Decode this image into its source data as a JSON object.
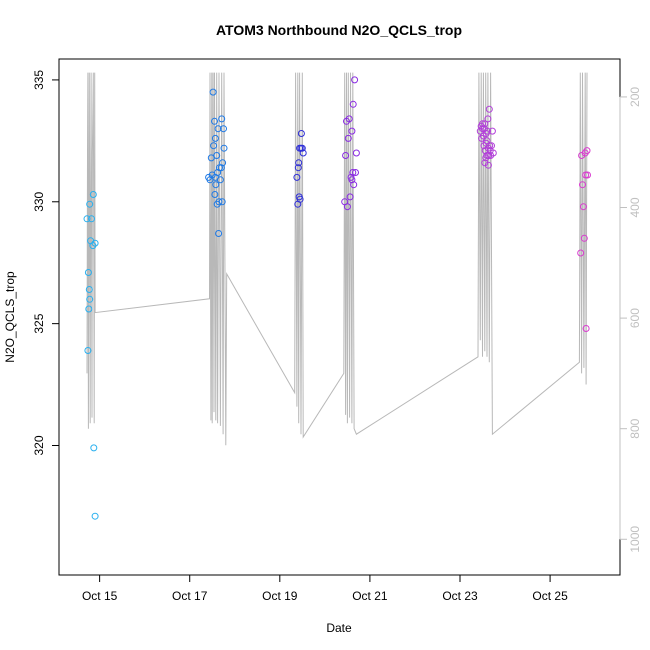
{
  "chart_data": {
    "type": "scatter",
    "title": "ATOM3 Northbound N2O_QCLS_trop",
    "xlabel": "Date",
    "ylabel": "N2O_QCLS_trop",
    "x_ticks": [
      "Oct 15",
      "Oct 17",
      "Oct 19",
      "Oct 21",
      "Oct 23",
      "Oct 25"
    ],
    "x_tick_values": [
      15,
      17,
      19,
      21,
      23,
      25
    ],
    "xlim": [
      14.4,
      26.25
    ],
    "y_ticks": [
      "320",
      "325",
      "330",
      "335"
    ],
    "y_tick_values": [
      320,
      325,
      330,
      335
    ],
    "ylim": [
      315.2,
      335.3
    ],
    "y2_ticks": [
      "200",
      "400",
      "600",
      "800",
      "1000"
    ],
    "y2_tick_values": [
      200,
      400,
      600,
      800,
      1000
    ],
    "y2lim": [
      1042,
      156
    ],
    "y2_reversed": true,
    "grid": false,
    "legend": "none",
    "point_colors": [
      "#29b0ef",
      "#1f7ae6",
      "#2f2fd8",
      "#8a2be2",
      "#b23fd9",
      "#d93ccf"
    ],
    "line_color": "#b8b8b8",
    "series": [
      {
        "color": "#29b0ef",
        "points": [
          [
            14.72,
            329.3
          ],
          [
            14.75,
            327.1
          ],
          [
            14.76,
            325.6
          ],
          [
            14.77,
            326.4
          ],
          [
            14.78,
            326.0
          ],
          [
            14.8,
            328.4
          ],
          [
            14.82,
            329.3
          ],
          [
            14.85,
            328.2
          ],
          [
            14.86,
            330.3
          ],
          [
            14.9,
            328.3
          ],
          [
            14.87,
            319.9
          ],
          [
            14.9,
            317.1
          ],
          [
            14.74,
            323.9
          ],
          [
            14.78,
            329.9
          ]
        ]
      },
      {
        "color": "#1f7ae6",
        "points": [
          [
            17.42,
            331.0
          ],
          [
            17.45,
            330.9
          ],
          [
            17.48,
            331.8
          ],
          [
            17.5,
            331.1
          ],
          [
            17.52,
            334.5
          ],
          [
            17.53,
            332.3
          ],
          [
            17.55,
            333.3
          ],
          [
            17.56,
            330.3
          ],
          [
            17.57,
            331.0
          ],
          [
            17.58,
            330.7
          ],
          [
            17.6,
            331.9
          ],
          [
            17.61,
            329.9
          ],
          [
            17.62,
            331.2
          ],
          [
            17.63,
            333.0
          ],
          [
            17.64,
            328.7
          ],
          [
            17.65,
            330.0
          ],
          [
            17.66,
            331.4
          ],
          [
            17.68,
            330.9
          ],
          [
            17.7,
            331.4
          ],
          [
            17.71,
            333.4
          ],
          [
            17.72,
            330.0
          ],
          [
            17.73,
            331.6
          ],
          [
            17.75,
            333.0
          ],
          [
            17.76,
            332.2
          ],
          [
            17.57,
            332.6
          ]
        ]
      },
      {
        "color": "#2f2fd8",
        "points": [
          [
            19.38,
            331.0
          ],
          [
            19.4,
            329.9
          ],
          [
            19.42,
            331.6
          ],
          [
            19.43,
            330.2
          ],
          [
            19.44,
            332.2
          ],
          [
            19.45,
            330.1
          ],
          [
            19.47,
            332.2
          ],
          [
            19.48,
            332.8
          ],
          [
            19.5,
            332.2
          ],
          [
            19.52,
            332.0
          ],
          [
            19.41,
            331.4
          ]
        ]
      },
      {
        "color": "#8a2be2",
        "points": [
          [
            20.44,
            330.0
          ],
          [
            20.46,
            331.9
          ],
          [
            20.48,
            333.3
          ],
          [
            20.5,
            329.8
          ],
          [
            20.52,
            332.6
          ],
          [
            20.54,
            333.4
          ],
          [
            20.56,
            330.2
          ],
          [
            20.58,
            331.0
          ],
          [
            20.6,
            332.9
          ],
          [
            20.62,
            331.2
          ],
          [
            20.63,
            334.0
          ],
          [
            20.64,
            330.7
          ],
          [
            20.66,
            335.0
          ],
          [
            20.68,
            331.2
          ],
          [
            20.7,
            332.0
          ],
          [
            20.6,
            330.9
          ]
        ]
      },
      {
        "color": "#b23fd9",
        "points": [
          [
            23.45,
            332.9
          ],
          [
            23.47,
            333.1
          ],
          [
            23.48,
            332.6
          ],
          [
            23.5,
            333.2
          ],
          [
            23.52,
            332.7
          ],
          [
            23.53,
            332.3
          ],
          [
            23.54,
            333.0
          ],
          [
            23.55,
            331.6
          ],
          [
            23.56,
            332.1
          ],
          [
            23.57,
            331.8
          ],
          [
            23.58,
            332.4
          ],
          [
            23.6,
            331.9
          ],
          [
            23.61,
            332.9
          ],
          [
            23.62,
            333.4
          ],
          [
            23.63,
            332.2
          ],
          [
            23.64,
            331.9
          ],
          [
            23.65,
            333.8
          ],
          [
            23.66,
            332.3
          ],
          [
            23.67,
            332.1
          ],
          [
            23.68,
            331.9
          ],
          [
            23.7,
            332.3
          ],
          [
            23.72,
            332.9
          ],
          [
            23.74,
            332.0
          ],
          [
            23.5,
            333.0
          ],
          [
            23.55,
            333.2
          ],
          [
            23.58,
            332.8
          ],
          [
            23.6,
            332.5
          ],
          [
            23.63,
            331.5
          ]
        ]
      },
      {
        "color": "#d93ccf",
        "points": [
          [
            25.68,
            327.9
          ],
          [
            25.7,
            331.9
          ],
          [
            25.72,
            330.7
          ],
          [
            25.74,
            329.8
          ],
          [
            25.76,
            328.5
          ],
          [
            25.78,
            332.0
          ],
          [
            25.79,
            331.1
          ],
          [
            25.8,
            324.8
          ],
          [
            25.82,
            332.1
          ],
          [
            25.83,
            331.1
          ]
        ]
      }
    ],
    "pressure_line": {
      "axis": "y2",
      "points": [
        [
          14.72,
          700
        ],
        [
          14.73,
          300
        ],
        [
          14.74,
          156
        ],
        [
          14.75,
          800
        ],
        [
          14.76,
          500
        ],
        [
          14.77,
          156
        ],
        [
          14.79,
          790
        ],
        [
          14.8,
          400
        ],
        [
          14.81,
          156
        ],
        [
          14.83,
          780
        ],
        [
          14.84,
          300
        ],
        [
          14.86,
          156
        ],
        [
          14.88,
          790
        ],
        [
          14.89,
          156
        ],
        [
          14.9,
          590
        ],
        [
          17.44,
          565
        ],
        [
          17.45,
          156
        ],
        [
          17.47,
          785
        ],
        [
          17.49,
          156
        ],
        [
          17.5,
          790
        ],
        [
          17.52,
          156
        ],
        [
          17.54,
          770
        ],
        [
          17.55,
          156
        ],
        [
          17.58,
          785
        ],
        [
          17.6,
          156
        ],
        [
          17.62,
          790
        ],
        [
          17.65,
          156
        ],
        [
          17.68,
          795
        ],
        [
          17.71,
          156
        ],
        [
          17.74,
          810
        ],
        [
          17.76,
          156
        ],
        [
          17.8,
          830
        ],
        [
          17.82,
          520
        ],
        [
          19.33,
          735
        ],
        [
          19.35,
          156
        ],
        [
          19.38,
          760
        ],
        [
          19.4,
          156
        ],
        [
          19.42,
          790
        ],
        [
          19.44,
          156
        ],
        [
          19.47,
          810
        ],
        [
          19.5,
          156
        ],
        [
          19.52,
          815
        ],
        [
          20.42,
          700
        ],
        [
          20.44,
          156
        ],
        [
          20.46,
          775
        ],
        [
          20.48,
          156
        ],
        [
          20.5,
          790
        ],
        [
          20.52,
          156
        ],
        [
          20.55,
          780
        ],
        [
          20.57,
          156
        ],
        [
          20.6,
          790
        ],
        [
          20.62,
          156
        ],
        [
          20.65,
          800
        ],
        [
          20.7,
          810
        ],
        [
          23.4,
          670
        ],
        [
          23.42,
          156
        ],
        [
          23.45,
          640
        ],
        [
          23.47,
          156
        ],
        [
          23.5,
          670
        ],
        [
          23.52,
          156
        ],
        [
          23.55,
          660
        ],
        [
          23.57,
          156
        ],
        [
          23.6,
          670
        ],
        [
          23.62,
          156
        ],
        [
          23.65,
          680
        ],
        [
          23.68,
          156
        ],
        [
          23.72,
          810
        ],
        [
          25.65,
          680
        ],
        [
          25.67,
          156
        ],
        [
          25.7,
          700
        ],
        [
          25.72,
          156
        ],
        [
          25.75,
          690
        ],
        [
          25.78,
          156
        ],
        [
          25.8,
          720
        ],
        [
          25.82,
          156
        ]
      ]
    }
  }
}
